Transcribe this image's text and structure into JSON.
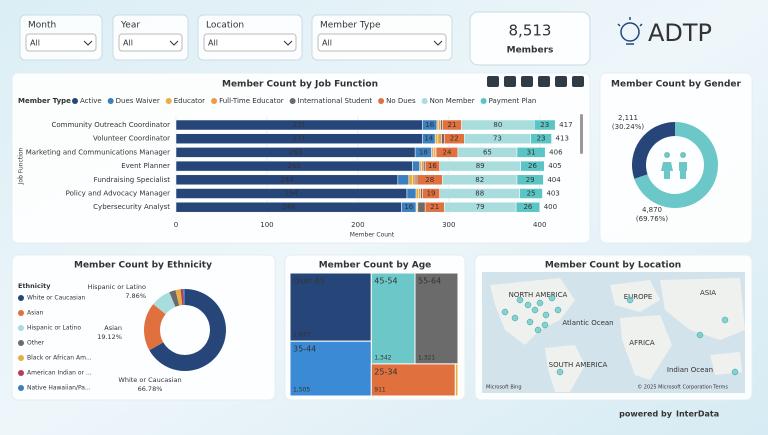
{
  "filters": [
    {
      "label": "Month",
      "value": "All"
    },
    {
      "label": "Year",
      "value": "All"
    },
    {
      "label": "Location",
      "value": "All"
    },
    {
      "label": "Member Type",
      "value": "All"
    }
  ],
  "card": {
    "value": "8,513",
    "label": "Members"
  },
  "logo": {
    "text": "ADTP"
  },
  "footer": {
    "prefix": "powered by",
    "brand": "InterData"
  },
  "chart_data": [
    {
      "type": "stacked_bar_h",
      "title": "Member Count by Job Function",
      "legend_title": "Member Type",
      "categories": [
        "Community Outreach Coordinator",
        "Volunteer Coordinator",
        "Marketing and Communications Manager",
        "Event Planner",
        "Fundraising Specialist",
        "Policy and Advocacy Manager",
        "Cybersecurity Analyst"
      ],
      "series": [
        {
          "name": "Active",
          "color": "#26467a",
          "values": [
            271,
            271,
            263,
            260,
            244,
            254,
            248
          ]
        },
        {
          "name": "Dues Waiver",
          "color": "#3a7fc0",
          "values": [
            16,
            14,
            18,
            8,
            12,
            10,
            16
          ]
        },
        {
          "name": "Educator",
          "color": "#e6b040",
          "values": [
            2,
            3,
            2,
            2,
            4,
            3,
            1
          ]
        },
        {
          "name": "Full-Time Educator",
          "color": "#ee9a48",
          "values": [
            2,
            4,
            2,
            2,
            3,
            2,
            1
          ]
        },
        {
          "name": "International Student",
          "color": "#6b6b6b",
          "values": [
            2,
            3,
            1,
            2,
            2,
            2,
            8
          ]
        },
        {
          "name": "No Dues",
          "color": "#e0703e",
          "values": [
            21,
            22,
            24,
            16,
            28,
            19,
            21
          ]
        },
        {
          "name": "Non Member",
          "color": "#a9dcdc",
          "values": [
            80,
            73,
            65,
            89,
            82,
            88,
            79
          ]
        },
        {
          "name": "Payment Plan",
          "color": "#5bc4c4",
          "values": [
            23,
            23,
            31,
            26,
            29,
            25,
            26
          ]
        }
      ],
      "totals": [
        417,
        413,
        406,
        405,
        404,
        403,
        400
      ],
      "xlim": [
        0,
        430
      ],
      "xticks": [
        0,
        100,
        200,
        300,
        400
      ],
      "x_label": "Member Count",
      "y_label": "Job Function"
    },
    {
      "type": "donut",
      "title": "Member Count by Gender",
      "values": [
        2111,
        4870
      ],
      "value_labels": [
        "2,111",
        "4,870"
      ],
      "percent_labels": [
        "(30.24%)",
        "(69.76%)"
      ],
      "colors": [
        "#26467a",
        "#6cc8c8"
      ]
    },
    {
      "type": "donut",
      "title": "Member Count by Ethnicity",
      "legend_title": "Ethnicity",
      "categories": [
        "White or Caucasian",
        "Asian",
        "Hispanic or Latino",
        "Other",
        "Black or African Am...",
        "American Indian or ...",
        "Native Hawaiian/Pa..."
      ],
      "values": [
        66.78,
        19.12,
        7.86,
        2.5,
        2.0,
        1.0,
        0.74
      ],
      "value_labels": [
        "66.78%",
        "19.12%",
        "7.86%",
        null,
        null,
        null,
        null
      ],
      "colors": [
        "#26467a",
        "#e0703e",
        "#a9dcdc",
        "#6b6b6b",
        "#e6b040",
        "#c0395a",
        "#3a7fc0"
      ]
    },
    {
      "type": "treemap",
      "title": "Member Count by Age",
      "categories": [
        "Over 65",
        "45-54",
        "55-64",
        "35-44",
        "25-34",
        null
      ],
      "values": [
        1873,
        1342,
        1321,
        1505,
        911,
        29
      ],
      "value_labels": [
        "1,873",
        "1,342",
        "1,321",
        "1,505",
        "911",
        null
      ],
      "colors": [
        "#26467a",
        "#6cc8c8",
        "#6b6b6b",
        "#3a8ad6",
        "#e0703e",
        "#e6b040"
      ]
    },
    {
      "type": "map",
      "title": "Member Count by Location",
      "labels": [
        "NORTH AMERICA",
        "EUROPE",
        "ASIA",
        "Atlantic Ocean",
        "AFRICA",
        "SOUTH AMERICA",
        "Indian Ocean"
      ],
      "provider": "Microsoft Bing",
      "attribution": "© 2025 Microsoft Corporation",
      "terms": "Terms"
    }
  ]
}
